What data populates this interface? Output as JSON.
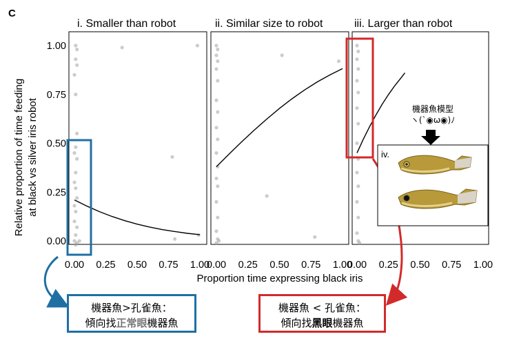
{
  "figure": {
    "letter": "C",
    "ylabel_line1": "Relative proportion of time feeding",
    "ylabel_line2": "at black vs silver iris robot",
    "xlabel": "Proportion time expressing black iris",
    "inset_label": "iv.",
    "inset_caption_line1": "機器魚模型",
    "inset_caption_line2": "ヽ(`◉ω◉)ﾉ",
    "note_left": {
      "line1": "機器魚>孔雀魚：",
      "line2_pre": "傾向找",
      "line2_hl": "正常眼",
      "line2_post": "機器魚"
    },
    "note_right": {
      "line1": "機器魚 < 孔雀魚：",
      "line2_pre": "傾向找",
      "line2_hl": "黑眼",
      "line2_post": "機器魚"
    },
    "colors": {
      "blue_box": "#1f6fa3",
      "red_box": "#d22a2a",
      "points": "#9a9a9a",
      "curve": "#000000"
    }
  },
  "chart_data": [
    {
      "type": "scatter",
      "title": "i. Smaller than robot",
      "xlim": [
        0,
        1
      ],
      "ylim": [
        0,
        1
      ],
      "xticks": [
        "0.00",
        "0.25",
        "0.50",
        "0.75",
        "1.00"
      ],
      "yticks": [
        "0.00",
        "0.25",
        "0.50",
        "0.75",
        "1.00"
      ],
      "points": [
        [
          0.01,
          1.0
        ],
        [
          0.02,
          0.98
        ],
        [
          0.01,
          0.93
        ],
        [
          0.02,
          0.9
        ],
        [
          0.0,
          0.85
        ],
        [
          0.01,
          0.75
        ],
        [
          0.02,
          0.55
        ],
        [
          0.01,
          0.48
        ],
        [
          0.0,
          0.45
        ],
        [
          0.02,
          0.42
        ],
        [
          0.01,
          0.35
        ],
        [
          0.0,
          0.3
        ],
        [
          0.01,
          0.27
        ],
        [
          0.02,
          0.22
        ],
        [
          0.0,
          0.18
        ],
        [
          0.01,
          0.15
        ],
        [
          0.0,
          0.1
        ],
        [
          0.02,
          0.07
        ],
        [
          0.01,
          0.03
        ],
        [
          0.0,
          0.0
        ],
        [
          0.02,
          -0.01
        ],
        [
          0.01,
          -0.02
        ],
        [
          0.04,
          0.0
        ],
        [
          0.38,
          0.99
        ],
        [
          0.78,
          0.43
        ],
        [
          0.8,
          0.01
        ],
        [
          0.98,
          1.0
        ],
        [
          0.99,
          0.03
        ]
      ],
      "fit": [
        [
          0.0,
          0.21
        ],
        [
          0.1,
          0.178
        ],
        [
          0.2,
          0.15
        ],
        [
          0.3,
          0.125
        ],
        [
          0.4,
          0.104
        ],
        [
          0.5,
          0.086
        ],
        [
          0.6,
          0.071
        ],
        [
          0.7,
          0.058
        ],
        [
          0.8,
          0.048
        ],
        [
          0.9,
          0.039
        ],
        [
          1.0,
          0.032
        ]
      ]
    },
    {
      "type": "scatter",
      "title": "ii. Similar size to robot",
      "xlim": [
        0,
        1
      ],
      "ylim": [
        0,
        1
      ],
      "xticks": [
        "0.00",
        "0.25",
        "0.50",
        "0.75",
        "1.00"
      ],
      "points": [
        [
          0.0,
          1.0
        ],
        [
          0.01,
          0.98
        ],
        [
          0.0,
          0.95
        ],
        [
          0.01,
          0.92
        ],
        [
          0.0,
          0.88
        ],
        [
          0.01,
          0.82
        ],
        [
          0.0,
          0.72
        ],
        [
          0.01,
          0.66
        ],
        [
          0.0,
          0.58
        ],
        [
          0.01,
          0.52
        ],
        [
          0.0,
          0.45
        ],
        [
          0.01,
          0.38
        ],
        [
          0.0,
          0.32
        ],
        [
          0.01,
          0.28
        ],
        [
          0.0,
          0.2
        ],
        [
          0.01,
          0.12
        ],
        [
          0.0,
          0.05
        ],
        [
          0.01,
          0.01
        ],
        [
          0.0,
          -0.01
        ],
        [
          0.02,
          0.0
        ],
        [
          0.52,
          0.95
        ],
        [
          0.78,
          0.02
        ],
        [
          0.4,
          0.23
        ],
        [
          0.97,
          0.92
        ]
      ],
      "fit": [
        [
          0.0,
          0.38
        ],
        [
          0.1,
          0.444
        ],
        [
          0.2,
          0.507
        ],
        [
          0.3,
          0.567
        ],
        [
          0.4,
          0.624
        ],
        [
          0.5,
          0.678
        ],
        [
          0.6,
          0.728
        ],
        [
          0.7,
          0.773
        ],
        [
          0.8,
          0.814
        ],
        [
          0.9,
          0.85
        ],
        [
          1.0,
          0.882
        ]
      ]
    },
    {
      "type": "scatter",
      "title": "iii. Larger than robot",
      "xlim": [
        0,
        1
      ],
      "ylim": [
        0,
        1
      ],
      "xticks": [
        "0.00",
        "0.25",
        "0.50",
        "0.75",
        "1.00"
      ],
      "points": [
        [
          0.0,
          1.0
        ],
        [
          0.01,
          0.97
        ],
        [
          0.0,
          0.93
        ],
        [
          0.01,
          0.88
        ],
        [
          0.0,
          0.82
        ],
        [
          0.01,
          0.76
        ],
        [
          0.0,
          0.68
        ],
        [
          0.01,
          0.6
        ],
        [
          0.0,
          0.5
        ],
        [
          0.01,
          0.42
        ],
        [
          0.0,
          0.35
        ],
        [
          0.01,
          0.28
        ],
        [
          0.0,
          0.2
        ],
        [
          0.01,
          0.12
        ],
        [
          0.0,
          0.04
        ],
        [
          0.01,
          0.0
        ],
        [
          0.02,
          -0.01
        ]
      ],
      "fit": [
        [
          0.0,
          0.45
        ],
        [
          0.05,
          0.52
        ],
        [
          0.1,
          0.585
        ],
        [
          0.15,
          0.645
        ],
        [
          0.2,
          0.7
        ],
        [
          0.25,
          0.75
        ],
        [
          0.3,
          0.795
        ],
        [
          0.35,
          0.835
        ],
        [
          0.38,
          0.86
        ]
      ]
    }
  ]
}
